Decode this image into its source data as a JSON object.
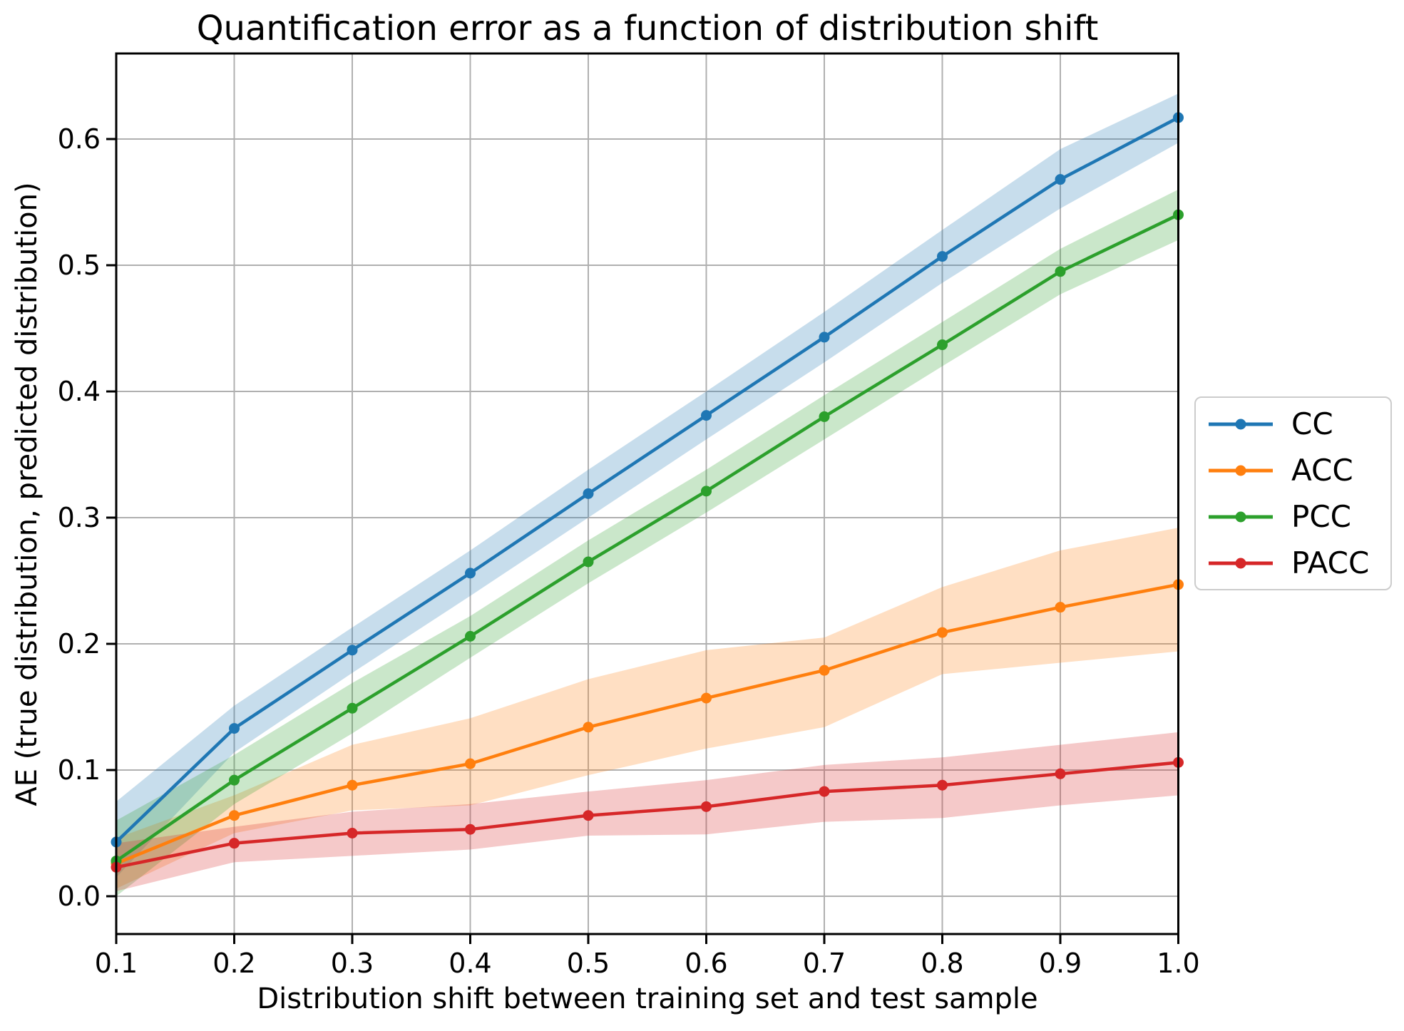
{
  "title": "Quantification error as a function of distribution shift",
  "x_axis": {
    "label": "Distribution shift between training set and test sample",
    "ticks": [
      "0.1",
      "0.2",
      "0.3",
      "0.4",
      "0.5",
      "0.6",
      "0.7",
      "0.8",
      "0.9",
      "1.0"
    ]
  },
  "y_axis": {
    "label": "AE (true distribution, predicted distribution)",
    "ticks": [
      "0.0",
      "0.1",
      "0.2",
      "0.3",
      "0.4",
      "0.5",
      "0.6"
    ]
  },
  "legend": {
    "entries": [
      "CC",
      "ACC",
      "PCC",
      "PACC"
    ]
  },
  "colors": {
    "grid": "#b0b0b0",
    "spine": "#000000",
    "text": "#000000",
    "legend_border": "#cccccc",
    "background": "#ffffff"
  },
  "chart_data": {
    "type": "line",
    "title": "Quantification error as a function of distribution shift",
    "xlabel": "Distribution shift between training set and test sample",
    "ylabel": "AE (true distribution, predicted distribution)",
    "x": [
      0.1,
      0.2,
      0.3,
      0.4,
      0.5,
      0.6,
      0.7,
      0.8,
      0.9,
      1.0
    ],
    "xlim": [
      0.1,
      1.0
    ],
    "ylim": [
      -0.03,
      0.668
    ],
    "x_tick_values": [
      0.1,
      0.2,
      0.3,
      0.4,
      0.5,
      0.6,
      0.7,
      0.8,
      0.9,
      1.0
    ],
    "y_tick_values": [
      0.0,
      0.1,
      0.2,
      0.3,
      0.4,
      0.5,
      0.6
    ],
    "grid": true,
    "legend_position": "right of axes, vertically centered",
    "band_opacity": 0.25,
    "series": [
      {
        "name": "CC",
        "color": "#1f77b4",
        "values": [
          0.043,
          0.133,
          0.195,
          0.256,
          0.319,
          0.381,
          0.443,
          0.507,
          0.568,
          0.617
        ],
        "band_lower": [
          0.015,
          0.114,
          0.177,
          0.238,
          0.3,
          0.362,
          0.423,
          0.486,
          0.545,
          0.597
        ],
        "band_upper": [
          0.075,
          0.151,
          0.213,
          0.274,
          0.338,
          0.4,
          0.463,
          0.528,
          0.592,
          0.636
        ]
      },
      {
        "name": "ACC",
        "color": "#ff7f0e",
        "values": [
          0.026,
          0.064,
          0.088,
          0.105,
          0.134,
          0.157,
          0.179,
          0.209,
          0.229,
          0.247
        ],
        "band_lower": [
          0.006,
          0.05,
          0.068,
          0.072,
          0.096,
          0.117,
          0.134,
          0.176,
          0.185,
          0.194
        ],
        "band_upper": [
          0.046,
          0.08,
          0.12,
          0.141,
          0.172,
          0.195,
          0.205,
          0.245,
          0.274,
          0.292
        ]
      },
      {
        "name": "PCC",
        "color": "#2ca02c",
        "values": [
          0.028,
          0.092,
          0.149,
          0.206,
          0.265,
          0.321,
          0.38,
          0.437,
          0.495,
          0.54
        ],
        "band_lower": [
          0.0,
          0.073,
          0.129,
          0.189,
          0.248,
          0.304,
          0.362,
          0.42,
          0.477,
          0.52
        ],
        "band_upper": [
          0.06,
          0.112,
          0.169,
          0.222,
          0.282,
          0.338,
          0.397,
          0.455,
          0.513,
          0.56
        ]
      },
      {
        "name": "PACC",
        "color": "#d62728",
        "values": [
          0.023,
          0.042,
          0.05,
          0.053,
          0.064,
          0.071,
          0.083,
          0.088,
          0.097,
          0.106
        ],
        "band_lower": [
          0.004,
          0.027,
          0.032,
          0.037,
          0.048,
          0.049,
          0.059,
          0.062,
          0.072,
          0.08
        ],
        "band_upper": [
          0.042,
          0.055,
          0.067,
          0.073,
          0.083,
          0.092,
          0.104,
          0.11,
          0.12,
          0.13
        ]
      }
    ]
  }
}
